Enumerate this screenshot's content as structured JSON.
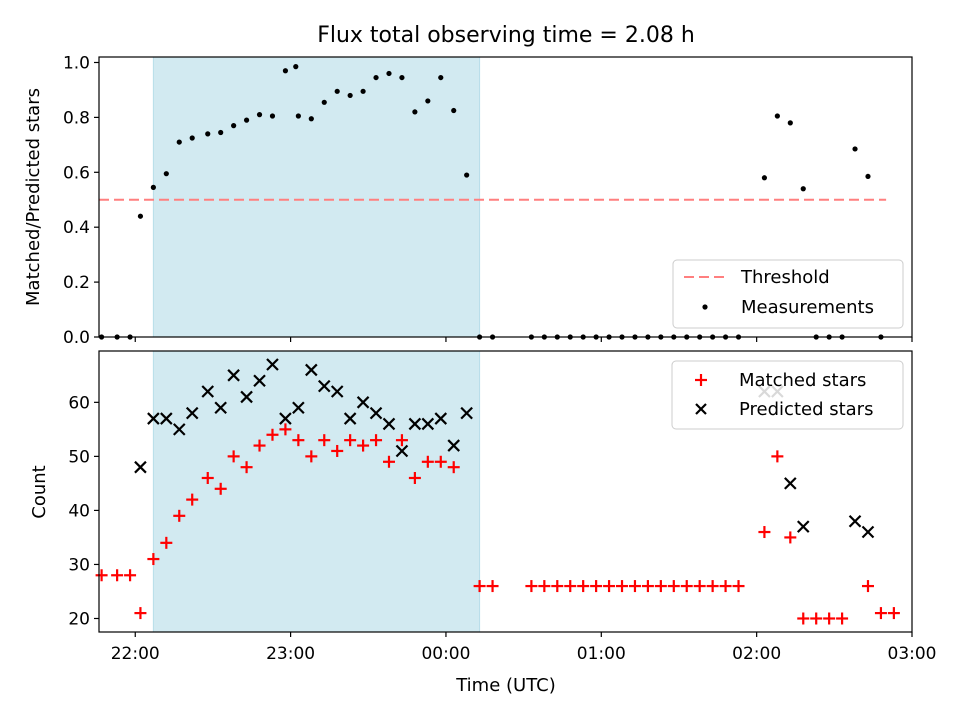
{
  "chart_data": [
    {
      "type": "scatter",
      "title": "Flux total observing time = 2.08 h",
      "xlabel": "",
      "ylabel": "Matched/Predicted stars",
      "ylim": [
        0,
        1.02
      ],
      "xlim": [
        "21:46",
        "03:00"
      ],
      "yticks": [
        "0.0",
        "0.2",
        "0.4",
        "0.6",
        "0.8",
        "1.0"
      ],
      "shaded_interval": [
        "22:07",
        "00:13"
      ],
      "shade_color": "#add8e6",
      "legend_position": "lower-right",
      "threshold": {
        "name": "Threshold",
        "value": 0.5,
        "x_start": "21:46",
        "x_end": "02:50",
        "color": "#ff7f7f"
      },
      "series": [
        {
          "name": "Measurements",
          "color": "#000000",
          "x": [
            "21:47",
            "21:53",
            "21:58",
            "22:02",
            "22:07",
            "22:12",
            "22:17",
            "22:22",
            "22:28",
            "22:33",
            "22:38",
            "22:43",
            "22:48",
            "22:53",
            "22:58",
            "23:02",
            "23:03",
            "23:08",
            "23:13",
            "23:18",
            "23:23",
            "23:28",
            "23:33",
            "23:38",
            "23:43",
            "23:48",
            "23:53",
            "23:58",
            "00:03",
            "00:08",
            "00:13",
            "00:18",
            "00:33",
            "00:38",
            "00:43",
            "00:48",
            "00:53",
            "00:58",
            "01:03",
            "01:08",
            "01:13",
            "01:18",
            "01:23",
            "01:28",
            "01:33",
            "01:38",
            "01:43",
            "01:48",
            "01:53",
            "02:03",
            "02:08",
            "02:13",
            "02:18",
            "02:23",
            "02:28",
            "02:33",
            "02:38",
            "02:43",
            "02:48"
          ],
          "y": [
            0,
            0,
            0,
            0.44,
            0.545,
            0.595,
            0.71,
            0.725,
            0.74,
            0.745,
            0.77,
            0.79,
            0.81,
            0.805,
            0.97,
            0.985,
            0.805,
            0.795,
            0.855,
            0.895,
            0.88,
            0.895,
            0.945,
            0.96,
            0.945,
            0.82,
            0.86,
            0.945,
            0.825,
            0.59,
            0,
            0,
            0,
            0,
            0,
            0,
            0,
            0,
            0,
            0,
            0,
            0,
            0,
            0,
            0,
            0,
            0,
            0,
            0,
            0.58,
            0.805,
            0.78,
            0.54,
            0,
            0,
            0,
            0.685,
            0.585,
            0
          ]
        }
      ]
    },
    {
      "type": "scatter",
      "title": "",
      "xlabel": "Time (UTC)",
      "ylabel": "Count",
      "ylim": [
        17.5,
        69.5
      ],
      "xlim": [
        "21:46",
        "03:00"
      ],
      "xticks": [
        "22:00",
        "23:00",
        "00:00",
        "01:00",
        "02:00",
        "03:00"
      ],
      "yticks": [
        "20",
        "30",
        "40",
        "50",
        "60"
      ],
      "legend_position": "upper-right",
      "series": [
        {
          "name": "Matched stars",
          "marker": "+",
          "color": "#ff0000",
          "x": [
            "21:47",
            "21:53",
            "21:58",
            "22:02",
            "22:07",
            "22:12",
            "22:17",
            "22:22",
            "22:28",
            "22:33",
            "22:38",
            "22:43",
            "22:48",
            "22:53",
            "22:58",
            "23:03",
            "23:08",
            "23:13",
            "23:18",
            "23:23",
            "23:28",
            "23:33",
            "23:38",
            "23:43",
            "23:48",
            "23:53",
            "23:58",
            "00:03",
            "00:13",
            "00:18",
            "00:33",
            "00:38",
            "00:43",
            "00:48",
            "00:53",
            "00:58",
            "01:03",
            "01:08",
            "01:13",
            "01:18",
            "01:23",
            "01:28",
            "01:33",
            "01:38",
            "01:43",
            "01:48",
            "01:53",
            "02:03",
            "02:08",
            "02:13",
            "02:18",
            "02:23",
            "02:28",
            "02:33",
            "02:43",
            "02:48",
            "02:53"
          ],
          "y": [
            28,
            28,
            28,
            21,
            31,
            34,
            39,
            42,
            46,
            44,
            50,
            48,
            52,
            54,
            55,
            53,
            50,
            53,
            51,
            53,
            52,
            53,
            49,
            53,
            46,
            49,
            49,
            48,
            26,
            26,
            26,
            26,
            26,
            26,
            26,
            26,
            26,
            26,
            26,
            26,
            26,
            26,
            26,
            26,
            26,
            26,
            26,
            36,
            50,
            35,
            20,
            20,
            20,
            20,
            26,
            21,
            21
          ]
        },
        {
          "name": "Predicted stars",
          "marker": "x",
          "color": "#000000",
          "x": [
            "22:02",
            "22:07",
            "22:12",
            "22:17",
            "22:22",
            "22:28",
            "22:33",
            "22:38",
            "22:43",
            "22:48",
            "22:53",
            "22:58",
            "23:03",
            "23:08",
            "23:13",
            "23:18",
            "23:23",
            "23:28",
            "23:33",
            "23:38",
            "23:43",
            "23:48",
            "23:53",
            "23:58",
            "00:03",
            "00:08",
            "02:03",
            "02:08",
            "02:13",
            "02:18",
            "02:38",
            "02:43"
          ],
          "y": [
            48,
            57,
            57,
            55,
            58,
            62,
            59,
            65,
            61,
            64,
            67,
            57,
            59,
            66,
            63,
            62,
            57,
            60,
            58,
            56,
            51,
            56,
            56,
            57,
            52,
            58,
            62,
            62,
            45,
            37,
            38,
            36
          ]
        }
      ]
    }
  ]
}
